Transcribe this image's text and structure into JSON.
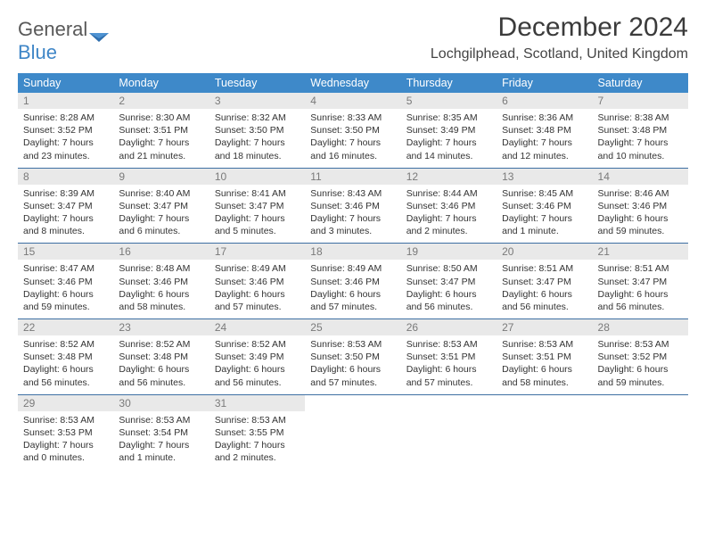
{
  "brand": {
    "word1": "General",
    "word2": "Blue"
  },
  "colors": {
    "header_bg": "#3e89c9",
    "rule": "#3e6fa3",
    "daynum_bg": "#e9e9e9"
  },
  "title": "December 2024",
  "location": "Lochgilphead, Scotland, United Kingdom",
  "weekdays": [
    "Sunday",
    "Monday",
    "Tuesday",
    "Wednesday",
    "Thursday",
    "Friday",
    "Saturday"
  ],
  "weeks": [
    [
      {
        "n": "1",
        "sr": "8:28 AM",
        "ss": "3:52 PM",
        "dl": "7 hours and 23 minutes."
      },
      {
        "n": "2",
        "sr": "8:30 AM",
        "ss": "3:51 PM",
        "dl": "7 hours and 21 minutes."
      },
      {
        "n": "3",
        "sr": "8:32 AM",
        "ss": "3:50 PM",
        "dl": "7 hours and 18 minutes."
      },
      {
        "n": "4",
        "sr": "8:33 AM",
        "ss": "3:50 PM",
        "dl": "7 hours and 16 minutes."
      },
      {
        "n": "5",
        "sr": "8:35 AM",
        "ss": "3:49 PM",
        "dl": "7 hours and 14 minutes."
      },
      {
        "n": "6",
        "sr": "8:36 AM",
        "ss": "3:48 PM",
        "dl": "7 hours and 12 minutes."
      },
      {
        "n": "7",
        "sr": "8:38 AM",
        "ss": "3:48 PM",
        "dl": "7 hours and 10 minutes."
      }
    ],
    [
      {
        "n": "8",
        "sr": "8:39 AM",
        "ss": "3:47 PM",
        "dl": "7 hours and 8 minutes."
      },
      {
        "n": "9",
        "sr": "8:40 AM",
        "ss": "3:47 PM",
        "dl": "7 hours and 6 minutes."
      },
      {
        "n": "10",
        "sr": "8:41 AM",
        "ss": "3:47 PM",
        "dl": "7 hours and 5 minutes."
      },
      {
        "n": "11",
        "sr": "8:43 AM",
        "ss": "3:46 PM",
        "dl": "7 hours and 3 minutes."
      },
      {
        "n": "12",
        "sr": "8:44 AM",
        "ss": "3:46 PM",
        "dl": "7 hours and 2 minutes."
      },
      {
        "n": "13",
        "sr": "8:45 AM",
        "ss": "3:46 PM",
        "dl": "7 hours and 1 minute."
      },
      {
        "n": "14",
        "sr": "8:46 AM",
        "ss": "3:46 PM",
        "dl": "6 hours and 59 minutes."
      }
    ],
    [
      {
        "n": "15",
        "sr": "8:47 AM",
        "ss": "3:46 PM",
        "dl": "6 hours and 59 minutes."
      },
      {
        "n": "16",
        "sr": "8:48 AM",
        "ss": "3:46 PM",
        "dl": "6 hours and 58 minutes."
      },
      {
        "n": "17",
        "sr": "8:49 AM",
        "ss": "3:46 PM",
        "dl": "6 hours and 57 minutes."
      },
      {
        "n": "18",
        "sr": "8:49 AM",
        "ss": "3:46 PM",
        "dl": "6 hours and 57 minutes."
      },
      {
        "n": "19",
        "sr": "8:50 AM",
        "ss": "3:47 PM",
        "dl": "6 hours and 56 minutes."
      },
      {
        "n": "20",
        "sr": "8:51 AM",
        "ss": "3:47 PM",
        "dl": "6 hours and 56 minutes."
      },
      {
        "n": "21",
        "sr": "8:51 AM",
        "ss": "3:47 PM",
        "dl": "6 hours and 56 minutes."
      }
    ],
    [
      {
        "n": "22",
        "sr": "8:52 AM",
        "ss": "3:48 PM",
        "dl": "6 hours and 56 minutes."
      },
      {
        "n": "23",
        "sr": "8:52 AM",
        "ss": "3:48 PM",
        "dl": "6 hours and 56 minutes."
      },
      {
        "n": "24",
        "sr": "8:52 AM",
        "ss": "3:49 PM",
        "dl": "6 hours and 56 minutes."
      },
      {
        "n": "25",
        "sr": "8:53 AM",
        "ss": "3:50 PM",
        "dl": "6 hours and 57 minutes."
      },
      {
        "n": "26",
        "sr": "8:53 AM",
        "ss": "3:51 PM",
        "dl": "6 hours and 57 minutes."
      },
      {
        "n": "27",
        "sr": "8:53 AM",
        "ss": "3:51 PM",
        "dl": "6 hours and 58 minutes."
      },
      {
        "n": "28",
        "sr": "8:53 AM",
        "ss": "3:52 PM",
        "dl": "6 hours and 59 minutes."
      }
    ],
    [
      {
        "n": "29",
        "sr": "8:53 AM",
        "ss": "3:53 PM",
        "dl": "7 hours and 0 minutes."
      },
      {
        "n": "30",
        "sr": "8:53 AM",
        "ss": "3:54 PM",
        "dl": "7 hours and 1 minute."
      },
      {
        "n": "31",
        "sr": "8:53 AM",
        "ss": "3:55 PM",
        "dl": "7 hours and 2 minutes."
      },
      null,
      null,
      null,
      null
    ]
  ],
  "labels": {
    "sunrise": "Sunrise: ",
    "sunset": "Sunset: ",
    "daylight": "Daylight: "
  }
}
